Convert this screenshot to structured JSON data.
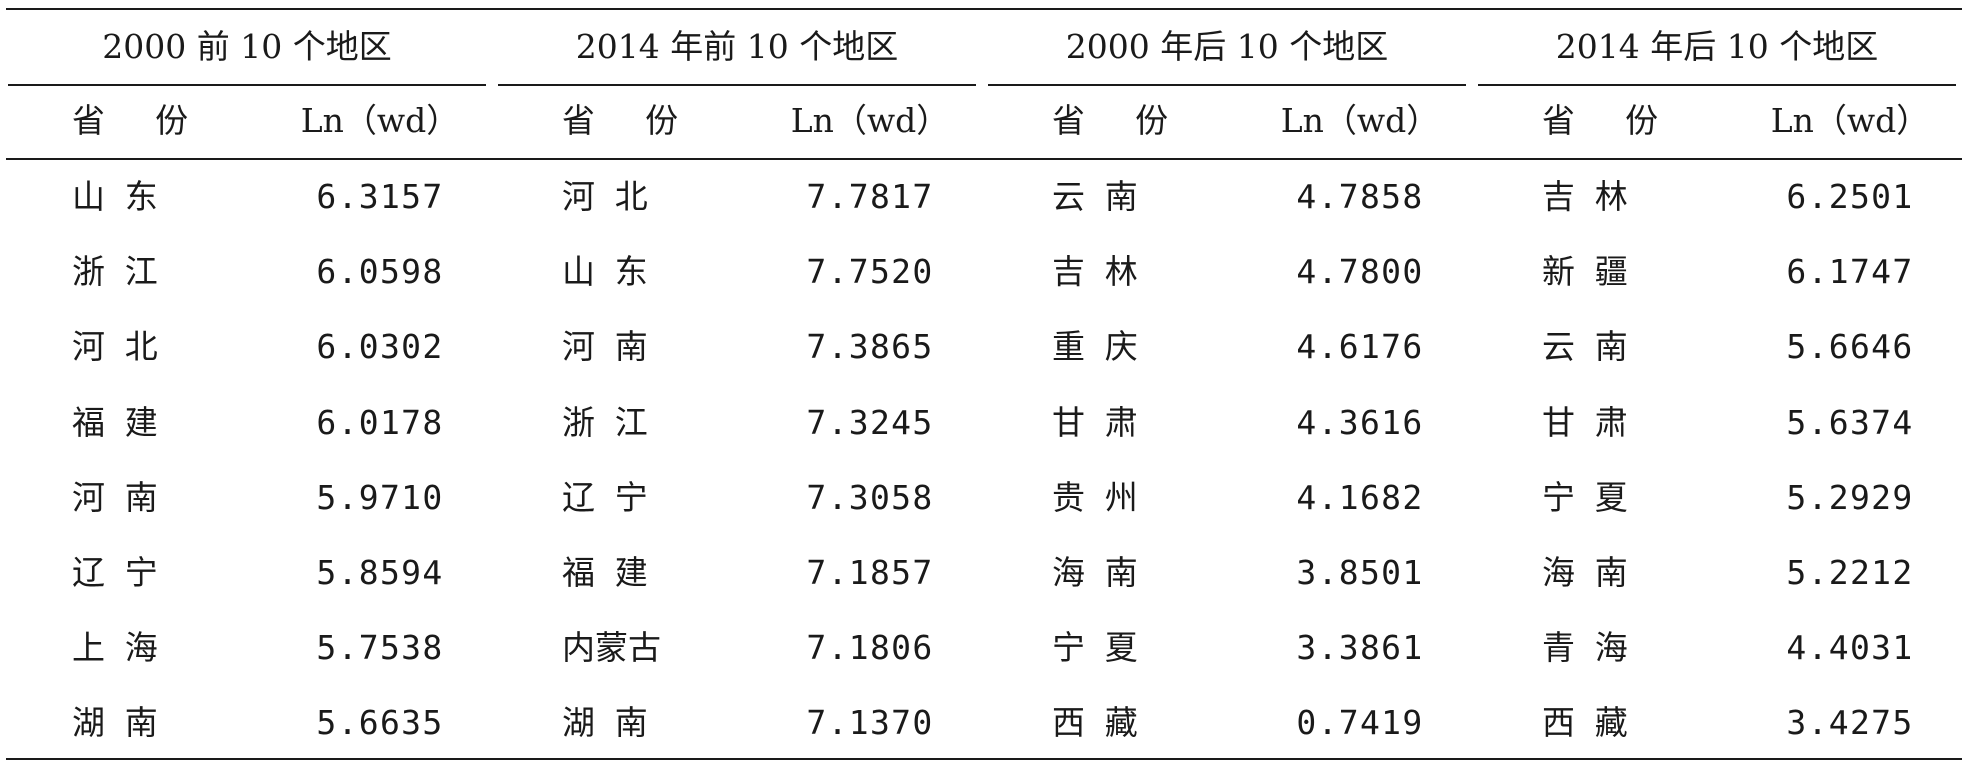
{
  "groups": [
    {
      "title": "2000 前 10 个地区",
      "col_province": "省 份",
      "col_value": "Ln（wd）",
      "rows": [
        {
          "province": "山东",
          "value": "6.3157"
        },
        {
          "province": "浙江",
          "value": "6.0598"
        },
        {
          "province": "河北",
          "value": "6.0302"
        },
        {
          "province": "福建",
          "value": "6.0178"
        },
        {
          "province": "河南",
          "value": "5.9710"
        },
        {
          "province": "辽宁",
          "value": "5.8594"
        },
        {
          "province": "上海",
          "value": "5.7538"
        },
        {
          "province": "湖南",
          "value": "5.6635"
        }
      ]
    },
    {
      "title": "2014 年前 10 个地区",
      "col_province": "省 份",
      "col_value": "Ln（wd）",
      "rows": [
        {
          "province": "河北",
          "value": "7.7817"
        },
        {
          "province": "山东",
          "value": "7.7520"
        },
        {
          "province": "河南",
          "value": "7.3865"
        },
        {
          "province": "浙江",
          "value": "7.3245"
        },
        {
          "province": "辽宁",
          "value": "7.3058"
        },
        {
          "province": "福建",
          "value": "7.1857"
        },
        {
          "province": "内蒙古",
          "value": "7.1806"
        },
        {
          "province": "湖南",
          "value": "7.1370"
        }
      ]
    },
    {
      "title": "2000 年后 10 个地区",
      "col_province": "省 份",
      "col_value": "Ln（wd）",
      "rows": [
        {
          "province": "云南",
          "value": "4.7858"
        },
        {
          "province": "吉林",
          "value": "4.7800"
        },
        {
          "province": "重庆",
          "value": "4.6176"
        },
        {
          "province": "甘肃",
          "value": "4.3616"
        },
        {
          "province": "贵州",
          "value": "4.1682"
        },
        {
          "province": "海南",
          "value": "3.8501"
        },
        {
          "province": "宁夏",
          "value": "3.3861"
        },
        {
          "province": "西藏",
          "value": "0.7419"
        }
      ]
    },
    {
      "title": "2014 年后 10 个地区",
      "col_province": "省 份",
      "col_value": "Ln（wd）",
      "rows": [
        {
          "province": "吉林",
          "value": "6.2501"
        },
        {
          "province": "新疆",
          "value": "6.1747"
        },
        {
          "province": "云南",
          "value": "5.6646"
        },
        {
          "province": "甘肃",
          "value": "5.6374"
        },
        {
          "province": "宁夏",
          "value": "5.2929"
        },
        {
          "province": "海南",
          "value": "5.2212"
        },
        {
          "province": "青海",
          "value": "4.4031"
        },
        {
          "province": "西藏",
          "value": "3.4275"
        }
      ]
    }
  ]
}
